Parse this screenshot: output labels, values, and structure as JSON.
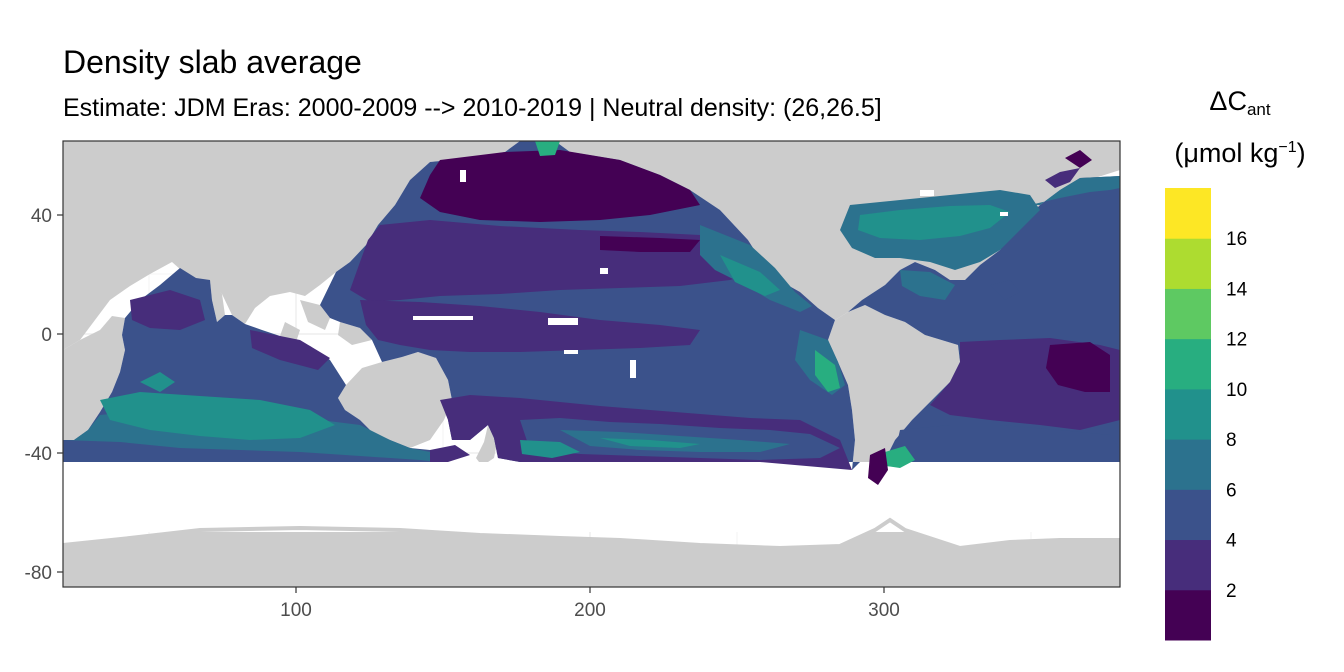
{
  "title": "Density slab average",
  "subtitle": "Estimate: JDM Eras: 2000-2009 --> 2010-2019 | Neutral density: (26,26.5]",
  "legend": {
    "title_symbol": "ΔC",
    "title_sub": "ant",
    "unit_prefix": "(μmol kg",
    "unit_sup": "−1",
    "unit_suffix": ")",
    "breaks": [
      "2",
      "4",
      "6",
      "8",
      "10",
      "12",
      "14",
      "16"
    ],
    "colors": [
      "#440154",
      "#472d7b",
      "#3b528b",
      "#2c728e",
      "#21918c",
      "#28ae80",
      "#5ec962",
      "#addc30",
      "#fde725"
    ]
  },
  "axes": {
    "x_ticks": [
      "100",
      "200",
      "300"
    ],
    "y_ticks": [
      "40",
      "0",
      "-40",
      "-80"
    ]
  },
  "colors": {
    "land": "#cccccc",
    "no_data": "#ffffff",
    "grid": "#ebebeb",
    "panel_border": "#333333"
  }
}
